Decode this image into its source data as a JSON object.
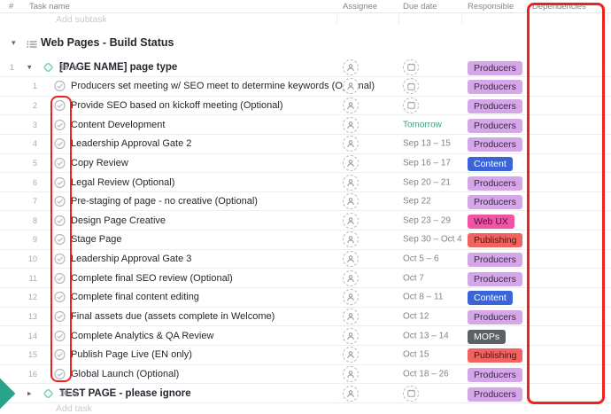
{
  "header": {
    "number_label": "#",
    "task_label": "Task name",
    "columns": [
      {
        "label": "Assignee"
      },
      {
        "label": "Due date"
      },
      {
        "label": "Responsible"
      },
      {
        "label": "Dependencies"
      }
    ]
  },
  "top_partial_label": "Add subtask",
  "bottom_partial_label": "Add task",
  "group": {
    "title": "Web Pages - Build Status"
  },
  "tags": {
    "producers": {
      "label": "Producers",
      "bg": "#d6a7e8",
      "fg": "#3b2547"
    },
    "content": {
      "label": "Content",
      "bg": "#3a64d8",
      "fg": "#ffffff"
    },
    "webux": {
      "label": "Web UX",
      "bg": "#f055a5",
      "fg": "#511034"
    },
    "publishing": {
      "label": "Publishing",
      "bg": "#f2635f",
      "fg": "#541110"
    },
    "mops": {
      "label": "MOPs",
      "bg": "#5c6167",
      "fg": "#ffffff"
    }
  },
  "rows": [
    {
      "kind": "parent",
      "num": "1",
      "expanded": true,
      "title": "[PAGE NAME] page type",
      "count": "16",
      "due": {
        "type": "calendar-icon"
      },
      "tag": "producers"
    },
    {
      "kind": "sub",
      "num": "1",
      "title": "Producers set meeting w/ SEO meet to determine keywords (Optional)",
      "due": {
        "type": "calendar-icon"
      },
      "tag": "producers"
    },
    {
      "kind": "sub",
      "num": "2",
      "title": "Provide SEO based on kickoff meeting (Optional)",
      "due": {
        "type": "calendar-icon"
      },
      "tag": "producers",
      "in_anno": true
    },
    {
      "kind": "sub",
      "num": "3",
      "title": "Content Development",
      "due": {
        "type": "text",
        "label": "Tomorrow",
        "accent": true
      },
      "tag": "producers",
      "in_anno": true
    },
    {
      "kind": "sub",
      "num": "4",
      "title": "Leadership Approval Gate 2",
      "due": {
        "type": "text",
        "label": "Sep 13 – 15"
      },
      "tag": "producers",
      "in_anno": true
    },
    {
      "kind": "sub",
      "num": "5",
      "title": "Copy Review",
      "due": {
        "type": "text",
        "label": "Sep 16 – 17"
      },
      "tag": "content",
      "in_anno": true
    },
    {
      "kind": "sub",
      "num": "6",
      "title": "Legal Review (Optional)",
      "due": {
        "type": "text",
        "label": "Sep 20 – 21"
      },
      "tag": "producers",
      "in_anno": true
    },
    {
      "kind": "sub",
      "num": "7",
      "title": "Pre-staging of page - no creative (Optional)",
      "due": {
        "type": "text",
        "label": "Sep 22"
      },
      "tag": "producers",
      "in_anno": true
    },
    {
      "kind": "sub",
      "num": "8",
      "title": "Design Page Creative",
      "due": {
        "type": "text",
        "label": "Sep 23 – 29"
      },
      "tag": "webux",
      "in_anno": true
    },
    {
      "kind": "sub",
      "num": "9",
      "title": "Stage Page",
      "due": {
        "type": "text",
        "label": "Sep 30 – Oct 4"
      },
      "tag": "publishing",
      "in_anno": true
    },
    {
      "kind": "sub",
      "num": "10",
      "title": "Leadership Approval Gate 3",
      "due": {
        "type": "text",
        "label": "Oct 5 – 6"
      },
      "tag": "producers",
      "in_anno": true
    },
    {
      "kind": "sub",
      "num": "11",
      "title": "Complete final SEO review (Optional)",
      "due": {
        "type": "text",
        "label": "Oct 7"
      },
      "tag": "producers",
      "in_anno": true
    },
    {
      "kind": "sub",
      "num": "12",
      "title": "Complete final content editing",
      "due": {
        "type": "text",
        "label": "Oct 8 – 11"
      },
      "tag": "content",
      "in_anno": true
    },
    {
      "kind": "sub",
      "num": "13",
      "title": "Final assets due (assets complete in Welcome)",
      "due": {
        "type": "text",
        "label": "Oct 12"
      },
      "tag": "producers",
      "in_anno": true
    },
    {
      "kind": "sub",
      "num": "14",
      "title": "Complete Analytics & QA Review",
      "due": {
        "type": "text",
        "label": "Oct 13 – 14"
      },
      "tag": "mops",
      "in_anno": true
    },
    {
      "kind": "sub",
      "num": "15",
      "title": "Publish Page Live (EN only)",
      "due": {
        "type": "text",
        "label": "Oct 15"
      },
      "tag": "publishing",
      "in_anno": true
    },
    {
      "kind": "sub",
      "num": "16",
      "title": "Global Launch (Optional)",
      "due": {
        "type": "text",
        "label": "Oct 18 – 26"
      },
      "tag": "producers",
      "in_anno": true
    },
    {
      "kind": "parent",
      "num": "2",
      "expanded": false,
      "title": "TEST PAGE - please ignore",
      "count": "16",
      "due": {
        "type": "calendar-icon"
      },
      "tag": "producers"
    }
  ],
  "annotations": {
    "checkmark_column_box_color": "#ec2222",
    "dependencies_column_box_color": "#ec2222"
  },
  "colors": {
    "status_diamond_stroke": "#7ed0ba",
    "check_circle_stroke": "#b4b9c0",
    "due_accent": "#3e9e7b",
    "teal_corner": "#2aa38b"
  }
}
